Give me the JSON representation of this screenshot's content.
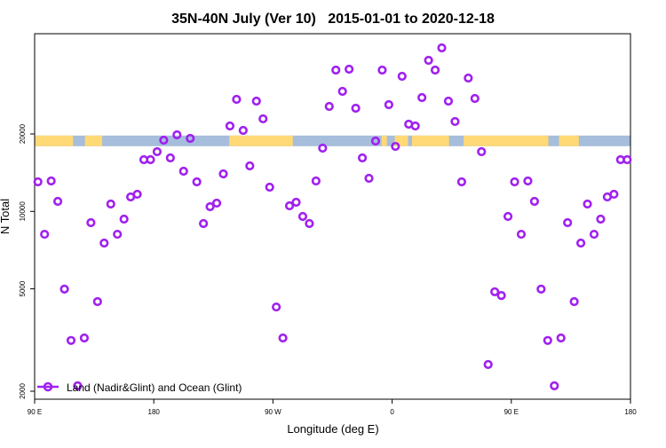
{
  "chart_data": {
    "type": "scatter",
    "title": "35N-40N July (Ver 10)   2015-01-01 to 2020-12-18",
    "xlabel": "Longitude (deg E)",
    "ylabel": "N Total",
    "xlim": [
      90,
      540
    ],
    "ylim": [
      1900,
      50000
    ],
    "yscale": "log",
    "x_ticks": [
      {
        "value": 90,
        "label": "90 E"
      },
      {
        "value": 180,
        "label": "180"
      },
      {
        "value": 270,
        "label": "90 W"
      },
      {
        "value": 360,
        "label": "0"
      },
      {
        "value": 450,
        "label": "90 E"
      },
      {
        "value": 540,
        "label": "180"
      }
    ],
    "y_ticks": [
      {
        "value": 2000,
        "label": "2000"
      },
      {
        "value": 5000,
        "label": "5000"
      },
      {
        "value": 10000,
        "label": "10000"
      },
      {
        "value": 20000,
        "label": "20000"
      }
    ],
    "legend": {
      "label": "Land (Nadir&Glint) and Ocean (Glint)",
      "position": "bottom-left"
    },
    "series": [
      {
        "name": "Land (Nadir&Glint) and Ocean (Glint)",
        "color": "#A020F0",
        "x_start": 92.5,
        "x_step": 5,
        "values": [
          13030,
          8150,
          13130,
          10940,
          4990,
          3150,
          2100,
          3220,
          9040,
          4460,
          7530,
          10680,
          8150,
          9330,
          11380,
          11660,
          15890,
          15890,
          17060,
          18920,
          16140,
          19840,
          14330,
          19220,
          13030,
          8970,
          10430,
          10770,
          13990,
          21480,
          27260,
          20640,
          15030,
          26830,
          22900,
          12420,
          4250,
          3220,
          10510,
          10850,
          9560,
          8970,
          13130,
          17610,
          25580,
          35420,
          29280,
          35700,
          25180,
          16140,
          13450,
          18770,
          35420,
          25990,
          17890,
          33510,
          21830,
          21480,
          27700,
          38660,
          35420,
          43200,
          26830,
          22360,
          13030,
          32980,
          27480,
          17060,
          2540,
          4870,
          4710,
          9560,
          13030,
          8150,
          13130,
          10940,
          4990,
          3150,
          2100,
          3220,
          9040,
          4460,
          7530,
          10680,
          8150,
          9330,
          11380,
          11660,
          15890,
          15890
        ]
      }
    ],
    "land_ocean_band": {
      "value": 18800,
      "ocean_color": "#A6BDDB",
      "land_color": "#FED976",
      "land_segments": [
        [
          90,
          119
        ],
        [
          128,
          141
        ],
        [
          237,
          285
        ],
        [
          352,
          356
        ],
        [
          362,
          372
        ],
        [
          375,
          403
        ],
        [
          414,
          478
        ],
        [
          486,
          501
        ]
      ]
    },
    "grid": false
  }
}
